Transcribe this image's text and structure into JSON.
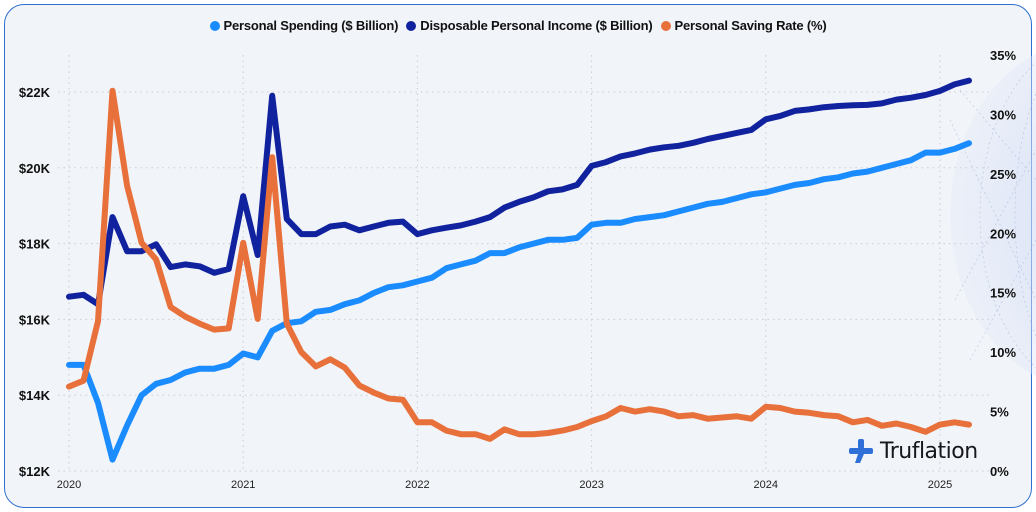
{
  "brand": {
    "name": "Truflation",
    "accent": "#2f6fd8"
  },
  "chart_data": {
    "type": "line",
    "title": "",
    "x": [
      "2020-01",
      "2020-02",
      "2020-03",
      "2020-04",
      "2020-05",
      "2020-06",
      "2020-07",
      "2020-08",
      "2020-09",
      "2020-10",
      "2020-11",
      "2020-12",
      "2021-01",
      "2021-02",
      "2021-03",
      "2021-04",
      "2021-05",
      "2021-06",
      "2021-07",
      "2021-08",
      "2021-09",
      "2021-10",
      "2021-11",
      "2021-12",
      "2022-01",
      "2022-02",
      "2022-03",
      "2022-04",
      "2022-05",
      "2022-06",
      "2022-07",
      "2022-08",
      "2022-09",
      "2022-10",
      "2022-11",
      "2022-12",
      "2023-01",
      "2023-02",
      "2023-03",
      "2023-04",
      "2023-05",
      "2023-06",
      "2023-07",
      "2023-08",
      "2023-09",
      "2023-10",
      "2023-11",
      "2023-12",
      "2024-01",
      "2024-02",
      "2024-03",
      "2024-04",
      "2024-05",
      "2024-06",
      "2024-07",
      "2024-08",
      "2024-09",
      "2024-10",
      "2024-11",
      "2024-12",
      "2025-01",
      "2025-02",
      "2025-03"
    ],
    "xticks": [
      "2020",
      "2021",
      "2022",
      "2023",
      "2024",
      "2025"
    ],
    "xrange": [
      "2020-01",
      "2025-03"
    ],
    "y_left": {
      "label": "$ Billion",
      "ticks": [
        "$12K",
        "$14K",
        "$16K",
        "$18K",
        "$20K",
        "$22K"
      ],
      "range": [
        12000,
        22000
      ]
    },
    "y_right": {
      "label": "%",
      "ticks": [
        "0%",
        "5%",
        "10%",
        "15%",
        "20%",
        "25%",
        "30%",
        "35%"
      ],
      "range": [
        0,
        35
      ]
    },
    "grid": true,
    "legend_position": "top-center",
    "series": [
      {
        "name": "Personal Spending ($ Billion)",
        "axis": "left",
        "color": "#1a8cff",
        "values": [
          14800,
          14800,
          13800,
          12300,
          13200,
          14000,
          14300,
          14400,
          14600,
          14700,
          14700,
          14800,
          15100,
          15000,
          15700,
          15900,
          15950,
          16200,
          16250,
          16400,
          16500,
          16700,
          16850,
          16900,
          17000,
          17100,
          17350,
          17450,
          17550,
          17750,
          17750,
          17900,
          18000,
          18100,
          18100,
          18150,
          18500,
          18550,
          18550,
          18650,
          18700,
          18750,
          18850,
          18950,
          19050,
          19100,
          19200,
          19300,
          19350,
          19450,
          19550,
          19600,
          19700,
          19750,
          19850,
          19900,
          20000,
          20100,
          20200,
          20400,
          20400,
          20500,
          20650
        ]
      },
      {
        "name": "Disposable Personal Income ($ Billion)",
        "axis": "left",
        "color": "#11229e",
        "values": [
          16600,
          16650,
          16400,
          18700,
          17800,
          17800,
          17980,
          17380,
          17450,
          17400,
          17230,
          17330,
          19250,
          17700,
          21900,
          18650,
          18250,
          18250,
          18450,
          18500,
          18350,
          18450,
          18550,
          18580,
          18250,
          18350,
          18420,
          18480,
          18580,
          18700,
          18950,
          19100,
          19220,
          19380,
          19430,
          19550,
          20050,
          20150,
          20300,
          20380,
          20480,
          20540,
          20580,
          20660,
          20760,
          20840,
          20920,
          21000,
          21280,
          21370,
          21500,
          21540,
          21600,
          21630,
          21650,
          21660,
          21700,
          21800,
          21850,
          21920,
          22030,
          22200,
          22300
        ]
      },
      {
        "name": "Personal Saving Rate (%)",
        "axis": "right",
        "color": "#e8703a",
        "values": [
          7.1,
          7.6,
          12.6,
          32.0,
          24.0,
          19.2,
          17.8,
          13.8,
          13.0,
          12.4,
          11.9,
          12.0,
          19.2,
          12.8,
          26.4,
          12.4,
          10.0,
          8.8,
          9.4,
          8.7,
          7.2,
          6.6,
          6.1,
          6.0,
          4.1,
          4.1,
          3.4,
          3.1,
          3.1,
          2.7,
          3.5,
          3.1,
          3.1,
          3.2,
          3.4,
          3.7,
          4.2,
          4.6,
          5.3,
          5.0,
          5.2,
          5.0,
          4.6,
          4.7,
          4.4,
          4.5,
          4.6,
          4.4,
          5.4,
          5.3,
          5.0,
          4.9,
          4.7,
          4.6,
          4.1,
          4.3,
          3.8,
          4.0,
          3.7,
          3.3,
          3.9,
          4.1,
          3.9
        ]
      }
    ]
  }
}
